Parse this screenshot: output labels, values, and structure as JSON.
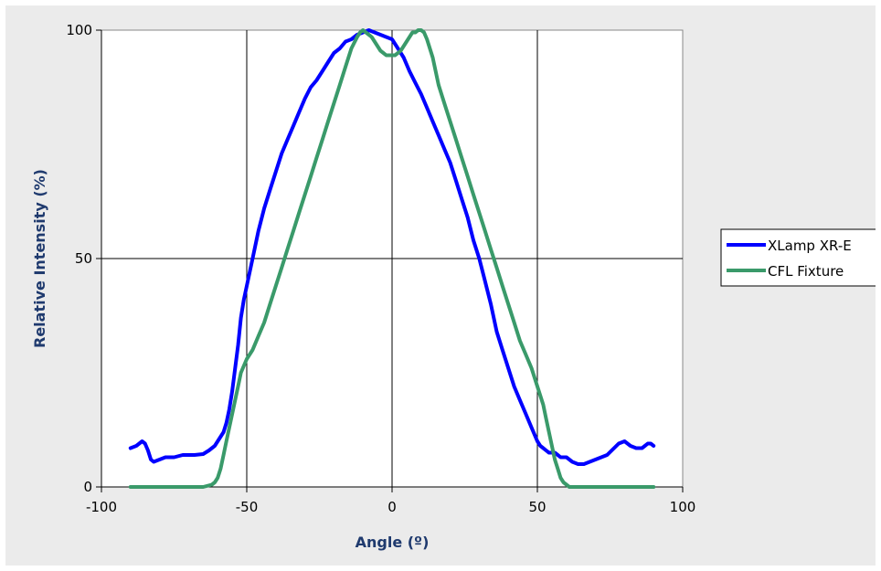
{
  "chart_data": {
    "type": "line",
    "title": "",
    "xlabel": "Angle (º)",
    "ylabel": "Relative Intensity (%)",
    "xlim": [
      -100,
      100
    ],
    "ylim": [
      0,
      100
    ],
    "x_ticks": [
      -100,
      -50,
      0,
      50,
      100
    ],
    "y_ticks": [
      0,
      50,
      100
    ],
    "grid": true,
    "legend_position": "right",
    "series": [
      {
        "name": "XLamp XR-E",
        "color": "#0000ff",
        "x": [
          -90,
          -88,
          -86,
          -85,
          -84,
          -83,
          -82,
          -80,
          -78,
          -75,
          -72,
          -70,
          -68,
          -65,
          -63,
          -61,
          -60,
          -58,
          -57,
          -56,
          -55,
          -54,
          -53,
          -52,
          -51,
          -50,
          -48,
          -46,
          -44,
          -42,
          -40,
          -38,
          -36,
          -34,
          -32,
          -30,
          -28,
          -26,
          -24,
          -22,
          -20,
          -18,
          -16,
          -14,
          -12,
          -10,
          -8,
          -6,
          -4,
          -2,
          0,
          2,
          4,
          6,
          8,
          10,
          12,
          14,
          16,
          18,
          20,
          22,
          24,
          26,
          28,
          30,
          32,
          34,
          36,
          38,
          40,
          42,
          44,
          46,
          48,
          50,
          51,
          52,
          53,
          54,
          55,
          56,
          57,
          58,
          60,
          62,
          64,
          66,
          70,
          74,
          78,
          80,
          82,
          84,
          86,
          87,
          88,
          89,
          90
        ],
        "y": [
          8.5,
          9,
          10,
          9.5,
          8,
          6,
          5.5,
          6,
          6.5,
          6.5,
          7,
          7,
          7,
          7.2,
          8,
          9,
          10,
          12,
          14,
          17,
          21,
          26,
          31,
          37,
          41,
          44,
          50,
          56,
          61,
          65,
          69,
          73,
          76,
          79,
          82,
          85,
          87.5,
          89,
          91,
          93,
          95,
          96,
          97.5,
          98,
          99,
          99.5,
          100,
          99.5,
          99,
          98.5,
          98,
          96,
          94,
          91,
          88.5,
          86,
          83,
          80,
          77,
          74,
          71,
          67,
          63,
          59,
          54,
          50,
          45,
          40,
          34,
          30,
          26,
          22,
          19,
          16,
          13,
          10,
          9,
          8.5,
          8,
          7.5,
          7.5,
          7.5,
          7,
          6.5,
          6.5,
          5.5,
          5,
          5,
          6,
          7,
          9.5,
          10,
          9,
          8.5,
          8.5,
          9,
          9.5,
          9.5,
          9
        ]
      },
      {
        "name": "CFL Fixture",
        "color": "#3a9a6a",
        "x": [
          -90,
          -80,
          -70,
          -65,
          -62,
          -61,
          -60,
          -59,
          -58,
          -57,
          -56,
          -55,
          -54,
          -53,
          -52,
          -50,
          -48,
          -46,
          -44,
          -42,
          -40,
          -38,
          -36,
          -34,
          -32,
          -30,
          -28,
          -26,
          -24,
          -22,
          -20,
          -18,
          -16,
          -14,
          -12,
          -11,
          -10,
          -9,
          -8,
          -7,
          -6,
          -5,
          -4,
          -3,
          -2,
          -1,
          0,
          1,
          2,
          3,
          4,
          5,
          6,
          7,
          8,
          9,
          10,
          11,
          12,
          14,
          16,
          18,
          20,
          22,
          24,
          26,
          28,
          30,
          32,
          34,
          36,
          38,
          40,
          42,
          44,
          46,
          48,
          50,
          52,
          53,
          54,
          55,
          56,
          57,
          58,
          59,
          60,
          61,
          62,
          65,
          70,
          80,
          90
        ],
        "y": [
          0,
          0,
          0,
          0,
          0.5,
          1,
          2,
          4,
          7,
          10,
          13,
          16,
          19,
          22,
          25,
          28,
          30,
          33,
          36,
          40,
          44,
          48,
          52,
          56,
          60,
          64,
          68,
          72,
          76,
          80,
          84,
          88,
          92,
          96,
          98.5,
          99.5,
          100,
          99.5,
          99,
          98.5,
          97.5,
          96.5,
          95.5,
          95,
          94.5,
          94.5,
          94.5,
          94.5,
          95,
          95.5,
          96.5,
          97.5,
          98.5,
          99.5,
          99.5,
          100,
          100,
          99.5,
          98,
          94,
          88,
          84,
          80,
          76,
          72,
          68,
          64,
          60,
          56,
          52,
          48,
          44,
          40,
          36,
          32,
          29,
          26,
          22,
          18,
          15,
          12,
          9,
          6,
          4,
          2,
          1,
          0.5,
          0,
          0,
          0,
          0,
          0,
          0
        ]
      }
    ]
  }
}
